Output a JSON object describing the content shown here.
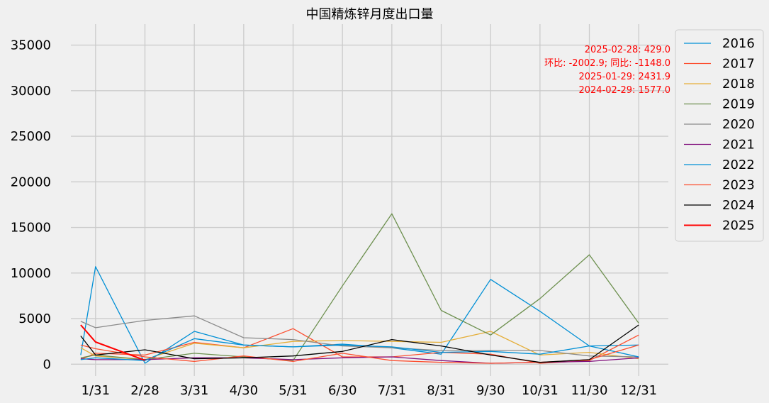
{
  "chart_data": {
    "type": "line",
    "title": "中国精炼锌月度出口量",
    "xlabel": "",
    "ylabel": "",
    "ylim": [
      -1300,
      37300
    ],
    "xlim": [
      0.5,
      12.6
    ],
    "grid": true,
    "legend_position": "outside-right",
    "x": [
      0.7,
      1,
      2,
      3,
      4,
      5,
      6,
      7,
      8,
      9,
      10,
      11,
      12
    ],
    "x_tick_positions": [
      1,
      2,
      3,
      4,
      5,
      6,
      7,
      8,
      9,
      10,
      11,
      12
    ],
    "x_tick_labels": [
      "1/31",
      "2/28",
      "3/31",
      "4/30",
      "5/31",
      "6/30",
      "7/31",
      "8/31",
      "9/30",
      "10/31",
      "11/30",
      "12/31"
    ],
    "y_ticks": [
      0,
      5000,
      10000,
      15000,
      20000,
      25000,
      30000,
      35000
    ],
    "series": [
      {
        "name": "2016",
        "color": "#008fd5",
        "width": 1.3,
        "values": [
          1000,
          10700,
          100,
          3600,
          2100,
          1900,
          2200,
          1800,
          1100,
          9300,
          5800,
          2000,
          2100
        ]
      },
      {
        "name": "2017",
        "color": "#fc4f30",
        "width": 1.3,
        "values": [
          500,
          1200,
          1000,
          2400,
          1800,
          3900,
          800,
          800,
          1300,
          1100,
          100,
          400,
          3200
        ]
      },
      {
        "name": "2018",
        "color": "#e5ae38",
        "width": 1.3,
        "values": [
          1800,
          900,
          500,
          2300,
          1800,
          2500,
          2600,
          2500,
          2400,
          3600,
          1000,
          1300,
          600
        ]
      },
      {
        "name": "2019",
        "color": "#6d904f",
        "width": 1.3,
        "values": [
          700,
          1000,
          500,
          1200,
          800,
          400,
          8600,
          16500,
          5900,
          3200,
          7200,
          12000,
          4500
        ]
      },
      {
        "name": "2020",
        "color": "#8b8b8b",
        "width": 1.3,
        "values": [
          4700,
          4000,
          4800,
          5300,
          2900,
          2700,
          2000,
          1800,
          1500,
          1500,
          1500,
          900,
          800
        ]
      },
      {
        "name": "2021",
        "color": "#810f7c",
        "width": 1.3,
        "values": [
          600,
          500,
          500,
          700,
          700,
          500,
          700,
          800,
          400,
          100,
          200,
          300,
          700
        ]
      },
      {
        "name": "2022",
        "color": "#008fd5",
        "width": 1.3,
        "values": [
          500,
          700,
          400,
          2800,
          2100,
          1900,
          2100,
          1900,
          1300,
          1400,
          1100,
          2000,
          800
        ]
      },
      {
        "name": "2023",
        "color": "#fc4f30",
        "width": 1.3,
        "values": [
          2100,
          1700,
          800,
          300,
          900,
          300,
          1200,
          400,
          200,
          100,
          200,
          500,
          2100
        ]
      },
      {
        "name": "2024",
        "color": "#000000",
        "width": 1.3,
        "values": [
          3100,
          1000,
          1577,
          600,
          700,
          900,
          1400,
          2700,
          2000,
          1000,
          200,
          500,
          4300
        ]
      },
      {
        "name": "2025",
        "color": "#ff0000",
        "width": 2.0,
        "x": [
          0.7,
          1,
          2
        ],
        "values": [
          4300,
          2431.9,
          429.0
        ]
      }
    ],
    "annotations": [
      "2025-02-28: 429.0",
      "环比: -2002.9; 同比: -1148.0",
      "2025-01-29: 2431.9",
      "2024-02-29: 1577.0"
    ]
  }
}
